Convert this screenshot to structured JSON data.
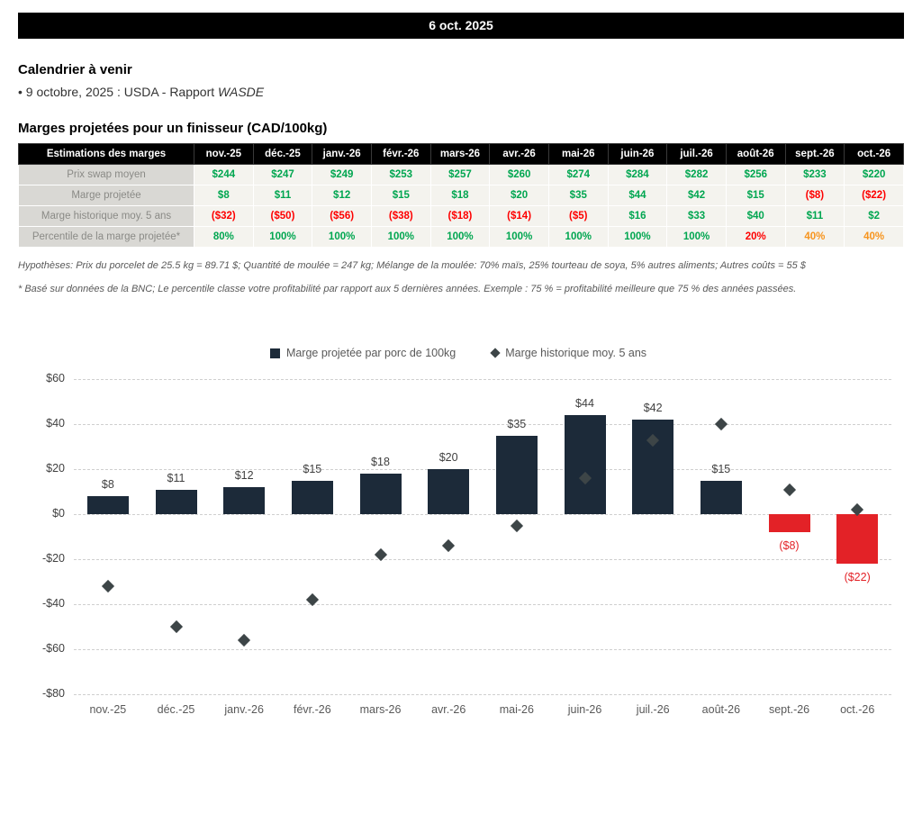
{
  "banner": {
    "date": "6 oct. 2025"
  },
  "calendar": {
    "title": "Calendrier à venir",
    "item_text": "• 9 octobre, 2025 : USDA - Rapport ",
    "item_emph": "WASDE"
  },
  "table": {
    "title": "Marges projetées pour un finisseur (CAD/100kg)",
    "columns": [
      "Estimations des marges",
      "nov.-25",
      "déc.-25",
      "janv.-26",
      "févr.-26",
      "mars-26",
      "avr.-26",
      "mai-26",
      "juin-26",
      "juil.-26",
      "août-26",
      "sept.-26",
      "oct.-26"
    ],
    "rows": [
      {
        "label": "Prix swap moyen",
        "values": [
          "$244",
          "$247",
          "$249",
          "$253",
          "$257",
          "$260",
          "$274",
          "$284",
          "$282",
          "$256",
          "$233",
          "$220"
        ],
        "styles": [
          "pos",
          "pos",
          "pos",
          "pos",
          "pos",
          "pos",
          "pos",
          "pos",
          "pos",
          "pos",
          "pos",
          "pos"
        ]
      },
      {
        "label": "Marge projetée",
        "values": [
          "$8",
          "$11",
          "$12",
          "$15",
          "$18",
          "$20",
          "$35",
          "$44",
          "$42",
          "$15",
          "($8)",
          "($22)"
        ],
        "styles": [
          "pos",
          "pos",
          "pos",
          "pos",
          "pos",
          "pos",
          "pos",
          "pos",
          "pos",
          "pos",
          "neg",
          "neg"
        ]
      },
      {
        "label": "Marge historique moy. 5 ans",
        "values": [
          "($32)",
          "($50)",
          "($56)",
          "($38)",
          "($18)",
          "($14)",
          "($5)",
          "$16",
          "$33",
          "$40",
          "$11",
          "$2"
        ],
        "styles": [
          "neg",
          "neg",
          "neg",
          "neg",
          "neg",
          "neg",
          "neg",
          "pos",
          "pos",
          "pos",
          "pos",
          "pos"
        ]
      },
      {
        "label": "Percentile de la marge projetée*",
        "values": [
          "80%",
          "100%",
          "100%",
          "100%",
          "100%",
          "100%",
          "100%",
          "100%",
          "100%",
          "20%",
          "40%",
          "40%"
        ],
        "styles": [
          "pos",
          "pos",
          "pos",
          "pos",
          "pos",
          "pos",
          "pos",
          "pos",
          "pos",
          "neg",
          "warn",
          "warn"
        ]
      }
    ],
    "footnote_hypotheses": "Hypothèses: Prix du porcelet de 25.5 kg = 89.71 $; Quantité de moulée = 247 kg; Mélange de la moulée: 70% maïs, 25% tourteau de soya, 5% autres aliments; Autres coûts = 55 $",
    "footnote_percentile": "* Basé sur données de la BNC; Le percentile classe votre profitabilité par rapport aux 5 dernières années. Exemple : 75 % = profitabilité meilleure que 75 % des années passées."
  },
  "chart_data": {
    "type": "bar",
    "categories": [
      "nov.-25",
      "déc.-25",
      "janv.-26",
      "févr.-26",
      "mars-26",
      "avr.-26",
      "mai-26",
      "juin-26",
      "juil.-26",
      "août-26",
      "sept.-26",
      "oct.-26"
    ],
    "series": [
      {
        "name": "Marge projetée par porc de 100kg",
        "type": "bar",
        "values": [
          8,
          11,
          12,
          15,
          18,
          20,
          35,
          44,
          42,
          15,
          -8,
          -22
        ],
        "labels": [
          "$8",
          "$11",
          "$12",
          "$15",
          "$18",
          "$20",
          "$35",
          "$44",
          "$42",
          "$15",
          "($8)",
          "($22)"
        ]
      },
      {
        "name": "Marge historique moy. 5 ans",
        "type": "scatter-diamond",
        "values": [
          -32,
          -50,
          -56,
          -38,
          -18,
          -14,
          -5,
          16,
          33,
          40,
          11,
          2
        ]
      }
    ],
    "ylim": [
      -80,
      60
    ],
    "ytick_interval": 20,
    "ytick_labels": [
      "$60",
      "$40",
      "$20",
      "$0",
      "-$20",
      "-$40",
      "-$60",
      "-$80"
    ],
    "grid": "dashed-horizontal",
    "legend_position": "top",
    "colors": {
      "bar_positive": "#1c2a39",
      "bar_negative": "#e32227",
      "diamond": "#3d4547",
      "label": "#3f3f3f",
      "negative_label": "#e32227"
    }
  }
}
